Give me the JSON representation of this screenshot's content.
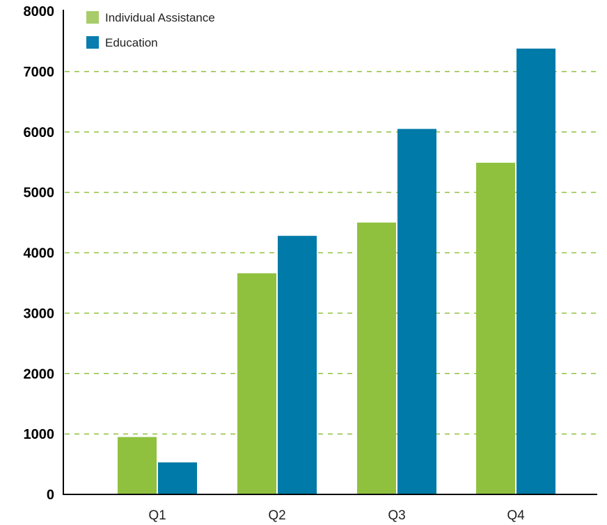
{
  "chart_data": {
    "type": "bar",
    "categories": [
      "Q1",
      "Q2",
      "Q3",
      "Q4"
    ],
    "series": [
      {
        "name": "Individual Assistance",
        "color": "#8fc13f",
        "legend_color": "#a8cc6a",
        "values": [
          950,
          3660,
          4500,
          5490
        ]
      },
      {
        "name": "Education",
        "color": "#007aa8",
        "legend_color": "#0a7db0",
        "values": [
          530,
          4280,
          6050,
          7380
        ]
      }
    ],
    "ylim": [
      0,
      8000
    ],
    "yticks": [
      0,
      1000,
      2000,
      3000,
      4000,
      5000,
      6000,
      7000,
      8000
    ],
    "grid": true,
    "grid_color": "#8fc13f",
    "legend_position": "top-left",
    "title": "",
    "xlabel": "",
    "ylabel": ""
  }
}
